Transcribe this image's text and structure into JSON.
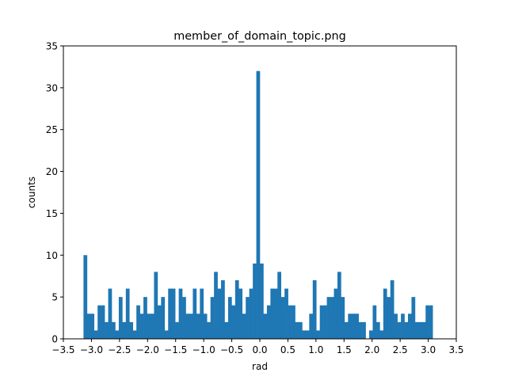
{
  "chart_data": {
    "type": "bar",
    "title": "member_of_domain_topic.png",
    "xlabel": "rad",
    "ylabel": "counts",
    "xlim": [
      -3.5,
      3.5
    ],
    "ylim": [
      0,
      35
    ],
    "xticks": [
      -3.5,
      -3.0,
      -2.5,
      -2.0,
      -1.5,
      -1.0,
      -0.5,
      0.0,
      0.5,
      1.0,
      1.5,
      2.0,
      2.5,
      3.0,
      3.5
    ],
    "xtick_labels": [
      "−3.5",
      "−3.0",
      "−2.5",
      "−2.0",
      "−1.5",
      "−1.0",
      "−0.5",
      "0.0",
      "0.5",
      "1.0",
      "1.5",
      "2.0",
      "2.5",
      "3.0",
      "3.5"
    ],
    "yticks": [
      0,
      5,
      10,
      15,
      20,
      25,
      30,
      35
    ],
    "ytick_labels": [
      "0",
      "5",
      "10",
      "15",
      "20",
      "25",
      "30",
      "35"
    ],
    "grid": false,
    "bar_color": "#1f77b4",
    "bin_range": [
      -3.1416,
      3.1416
    ],
    "bin_count": 100,
    "values": [
      10,
      3,
      3,
      1,
      4,
      4,
      2,
      6,
      2,
      1,
      5,
      2,
      6,
      2,
      1,
      4,
      3,
      5,
      3,
      3,
      8,
      4,
      5,
      1,
      6,
      6,
      2,
      6,
      5,
      3,
      3,
      6,
      3,
      6,
      3,
      2,
      5,
      8,
      6,
      7,
      2,
      5,
      4,
      7,
      6,
      3,
      5,
      6,
      9,
      32,
      9,
      3,
      4,
      6,
      6,
      8,
      5,
      6,
      4,
      4,
      2,
      2,
      1,
      1,
      3,
      7,
      1,
      4,
      4,
      5,
      5,
      6,
      8,
      5,
      2,
      3,
      3,
      3,
      2,
      2,
      0,
      1,
      4,
      2,
      1,
      6,
      5,
      7,
      3,
      2,
      3,
      2,
      3,
      5,
      2,
      2,
      2,
      4,
      4,
      0
    ]
  }
}
